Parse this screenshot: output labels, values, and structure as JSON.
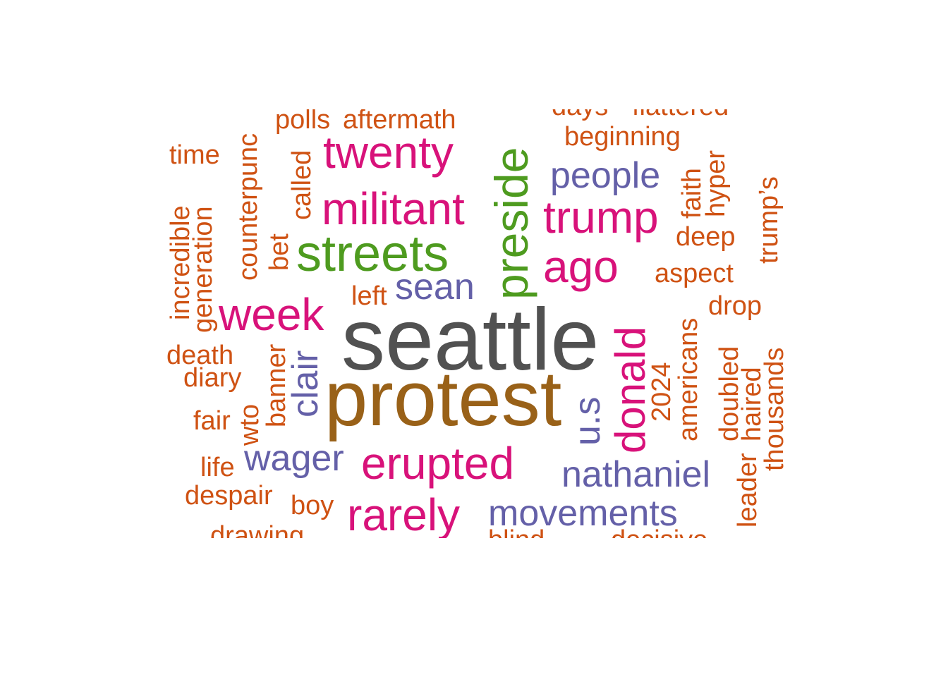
{
  "colors": {
    "gray": "#515151",
    "brown": "#996118",
    "green": "#4e9b1f",
    "magenta": "#d8127a",
    "purple": "#6460a8",
    "orange": "#cf5213"
  },
  "words": [
    {
      "text": "seattle",
      "color": "gray"
    },
    {
      "text": "protest",
      "color": "brown"
    },
    {
      "text": "preside",
      "color": "green"
    },
    {
      "text": "streets",
      "color": "green"
    },
    {
      "text": "twenty",
      "color": "magenta"
    },
    {
      "text": "militant",
      "color": "magenta"
    },
    {
      "text": "trump",
      "color": "magenta"
    },
    {
      "text": "ago",
      "color": "magenta"
    },
    {
      "text": "week",
      "color": "magenta"
    },
    {
      "text": "donald",
      "color": "magenta"
    },
    {
      "text": "erupted",
      "color": "magenta"
    },
    {
      "text": "rarely",
      "color": "magenta"
    },
    {
      "text": "people",
      "color": "purple"
    },
    {
      "text": "sean",
      "color": "purple"
    },
    {
      "text": "clair",
      "color": "purple"
    },
    {
      "text": "wager",
      "color": "purple"
    },
    {
      "text": "u.s",
      "color": "purple"
    },
    {
      "text": "nathaniel",
      "color": "purple"
    },
    {
      "text": "movements",
      "color": "purple"
    },
    {
      "text": "polls",
      "color": "orange"
    },
    {
      "text": "aftermath",
      "color": "orange"
    },
    {
      "text": "days",
      "color": "orange"
    },
    {
      "text": "flattered",
      "color": "orange"
    },
    {
      "text": "beginning",
      "color": "orange"
    },
    {
      "text": "time",
      "color": "orange"
    },
    {
      "text": "counterpunc",
      "color": "orange"
    },
    {
      "text": "called",
      "color": "orange"
    },
    {
      "text": "faith",
      "color": "orange"
    },
    {
      "text": "hyper",
      "color": "orange"
    },
    {
      "text": "trump’s",
      "color": "orange"
    },
    {
      "text": "incredible",
      "color": "orange"
    },
    {
      "text": "generation",
      "color": "orange"
    },
    {
      "text": "bet",
      "color": "orange"
    },
    {
      "text": "deep",
      "color": "orange"
    },
    {
      "text": "aspect",
      "color": "orange"
    },
    {
      "text": "left",
      "color": "orange"
    },
    {
      "text": "drop",
      "color": "orange"
    },
    {
      "text": "death",
      "color": "orange"
    },
    {
      "text": "diary",
      "color": "orange"
    },
    {
      "text": "banner",
      "color": "orange"
    },
    {
      "text": "2024",
      "color": "orange"
    },
    {
      "text": "americans",
      "color": "orange"
    },
    {
      "text": "doubled",
      "color": "orange"
    },
    {
      "text": "haired",
      "color": "orange"
    },
    {
      "text": "thousands",
      "color": "orange"
    },
    {
      "text": "fair",
      "color": "orange"
    },
    {
      "text": "wto",
      "color": "orange"
    },
    {
      "text": "life",
      "color": "orange"
    },
    {
      "text": "leader",
      "color": "orange"
    },
    {
      "text": "despair",
      "color": "orange"
    },
    {
      "text": "boy",
      "color": "orange"
    },
    {
      "text": "drawing",
      "color": "orange"
    },
    {
      "text": "blind",
      "color": "orange"
    },
    {
      "text": "decisive",
      "color": "orange"
    }
  ]
}
